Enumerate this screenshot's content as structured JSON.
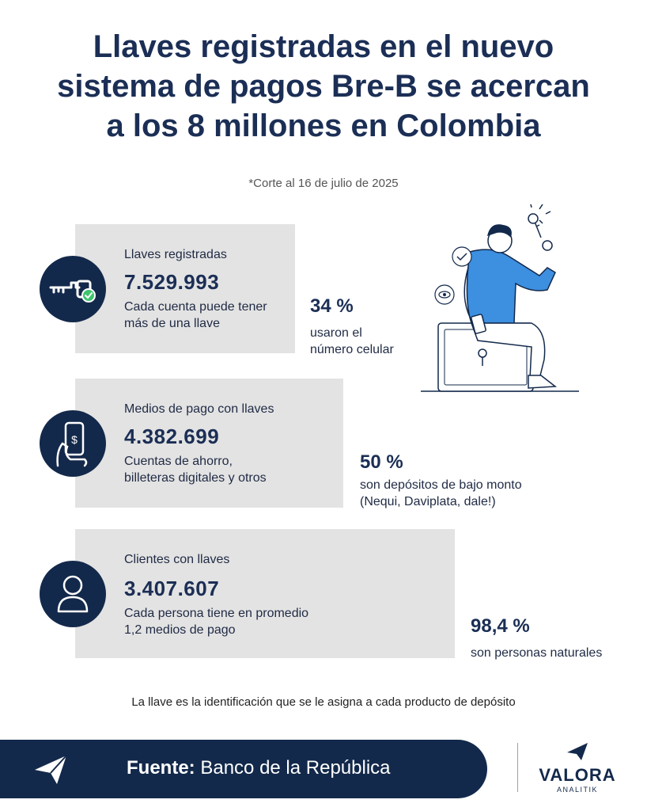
{
  "header": {
    "title_lines": [
      "Llaves registradas en el nuevo",
      "sistema de pagos Bre-B se acercan",
      "a los 8 millones en Colombia"
    ],
    "subtitle": "*Corte al 16 de julio de 2025"
  },
  "cards": [
    {
      "label": "Llaves registradas",
      "value": "7.529.993",
      "desc_lines": [
        "Cada cuenta puede tener",
        "más de una llave"
      ],
      "icon": "key-icon",
      "stat_pct": "34 %",
      "stat_lines": [
        "usaron el",
        "número celular"
      ]
    },
    {
      "label": "Medios de pago con llaves",
      "value": "4.382.699",
      "desc_lines": [
        "Cuentas de ahorro,",
        "billeteras digitales y otros"
      ],
      "icon": "phone-payment-icon",
      "stat_pct": "50 %",
      "stat_lines": [
        "son depósitos de bajo monto",
        "(Nequi, Daviplata, dale!)"
      ]
    },
    {
      "label": "Clientes con llaves",
      "value": "3.407.607",
      "desc_lines": [
        "Cada persona tiene en promedio",
        "1,2 medios de pago"
      ],
      "icon": "person-icon",
      "stat_pct": "98,4 %",
      "stat_lines": [
        "son personas naturales"
      ]
    }
  ],
  "footnote": "La llave es la identificación que se le asigna a cada producto de depósito",
  "footer": {
    "source_label": "Fuente:",
    "source_value": "Banco de la República",
    "brand": "VALORA",
    "brand_sub": "ANALITIK"
  },
  "colors": {
    "navy": "#13294b",
    "card_gray": "#e3e3e3",
    "illustration_blue": "#3d8fe0",
    "check_green": "#3ec46d"
  }
}
